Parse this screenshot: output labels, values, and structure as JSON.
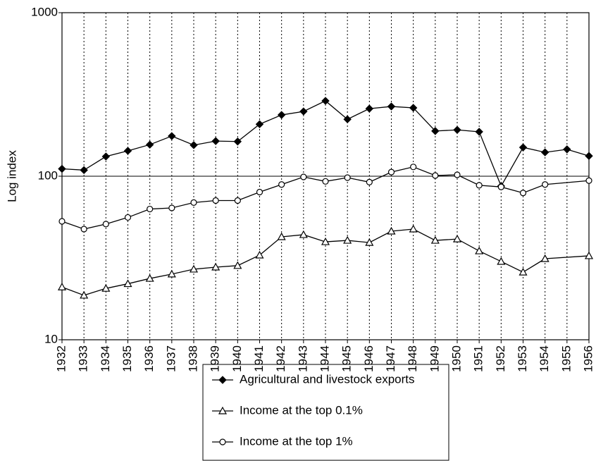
{
  "chart_data": {
    "type": "line",
    "y_label": "Log index",
    "log_scale": true,
    "grid": true,
    "xlim": [
      1932,
      1956
    ],
    "xticks": [
      1932,
      1933,
      1934,
      1935,
      1936,
      1937,
      1938,
      1939,
      1940,
      1941,
      1942,
      1943,
      1944,
      1945,
      1946,
      1947,
      1948,
      1949,
      1950,
      1951,
      1952,
      1953,
      1954,
      1955,
      1956
    ],
    "ylim": [
      10,
      1000
    ],
    "yticks": [
      10,
      100,
      1000
    ],
    "legend": "bottom",
    "series": [
      {
        "name": "Agricultural and livestock exports",
        "color": "#000000",
        "marker": "diamond",
        "x": [
          1932,
          1933,
          1934,
          1935,
          1936,
          1937,
          1938,
          1939,
          1940,
          1941,
          1942,
          1943,
          1944,
          1945,
          1946,
          1947,
          1948,
          1949,
          1950,
          1951,
          1952,
          1953,
          1954,
          1955,
          1956
        ],
        "values": [
          111,
          109,
          132,
          143,
          156,
          176,
          155,
          164,
          163,
          208,
          237,
          249,
          289,
          223,
          259,
          267,
          262,
          189,
          192,
          187,
          87,
          150,
          140,
          146,
          133
        ]
      },
      {
        "name": "Income at the top 0.1%",
        "color": "#000000",
        "marker": "triangle",
        "x": [
          1932,
          1933,
          1934,
          1935,
          1936,
          1937,
          1938,
          1939,
          1940,
          1941,
          1942,
          1943,
          1944,
          1945,
          1946,
          1947,
          1948,
          1949,
          1950,
          1951,
          1952,
          1953,
          1954,
          1956
        ],
        "values": [
          21,
          18.7,
          20.6,
          22,
          23.7,
          25.2,
          27,
          27.8,
          28.4,
          32.9,
          42.6,
          43.9,
          39.7,
          40.5,
          39.3,
          46.1,
          47.5,
          40.5,
          41.3,
          34.9,
          30.1,
          25.9,
          31.3,
          32.6
        ]
      },
      {
        "name": "Income at the top 1%",
        "color": "#000000",
        "marker": "circle",
        "x": [
          1932,
          1933,
          1934,
          1935,
          1936,
          1937,
          1938,
          1939,
          1940,
          1941,
          1942,
          1943,
          1944,
          1945,
          1946,
          1947,
          1948,
          1949,
          1950,
          1951,
          1952,
          1953,
          1954,
          1956
        ],
        "values": [
          53,
          47.5,
          51,
          56,
          63,
          64,
          69,
          71,
          71,
          80,
          89,
          99,
          93,
          98,
          92,
          106,
          114,
          101,
          102,
          88,
          86,
          79,
          89,
          94
        ]
      }
    ]
  }
}
